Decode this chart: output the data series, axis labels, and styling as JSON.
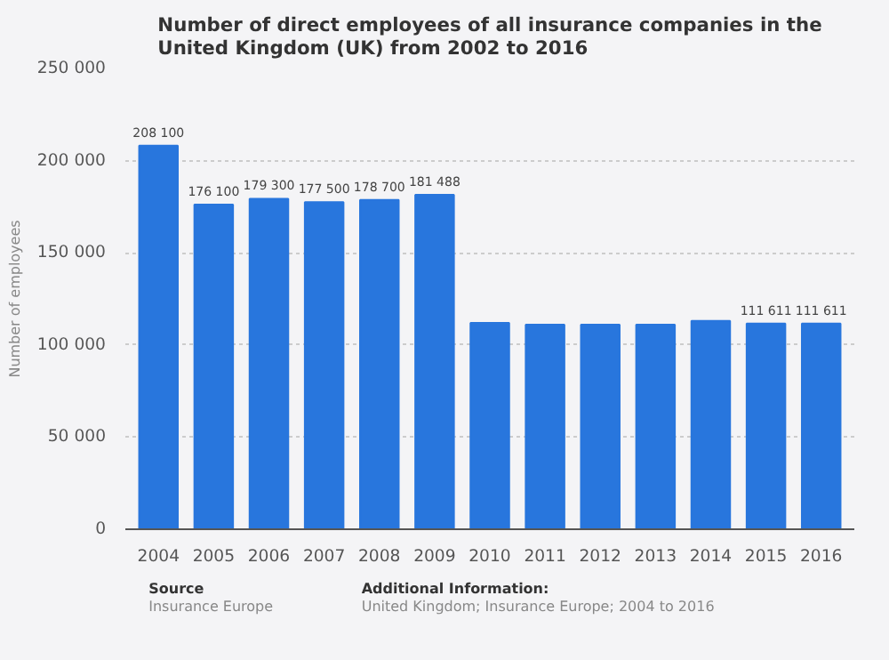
{
  "chart_data": {
    "type": "bar",
    "title": "Number of direct employees of all insurance companies in the United Kingdom (UK) from 2002 to 2016",
    "ylabel": "Number of employees",
    "categories": [
      "2004",
      "2005",
      "2006",
      "2007",
      "2008",
      "2009",
      "2010",
      "2011",
      "2012",
      "2013",
      "2014",
      "2015",
      "2016"
    ],
    "values": [
      208100,
      176100,
      179300,
      177500,
      178700,
      181488,
      112000,
      111000,
      111000,
      111000,
      113000,
      111611,
      111611
    ],
    "value_labels": [
      "208 100",
      "176 100",
      "179 300",
      "177 500",
      "178 700",
      "181 488",
      null,
      null,
      null,
      null,
      null,
      "111 611",
      "111 611"
    ],
    "color": "#2876dd",
    "ylim": [
      0,
      250000
    ],
    "yticks": [
      {
        "value": 0,
        "label": "0"
      },
      {
        "value": 50000,
        "label": "50 000"
      },
      {
        "value": 100000,
        "label": "100 000"
      },
      {
        "value": 150000,
        "label": "150 000"
      },
      {
        "value": 200000,
        "label": "200 000"
      },
      {
        "value": 250000,
        "label": "250 000"
      }
    ],
    "grid": "y",
    "annotations": [
      "Source",
      "Insurance Europe",
      "Additional Information:",
      "United Kingdom; Insurance Europe; 2004 to 2016"
    ]
  }
}
